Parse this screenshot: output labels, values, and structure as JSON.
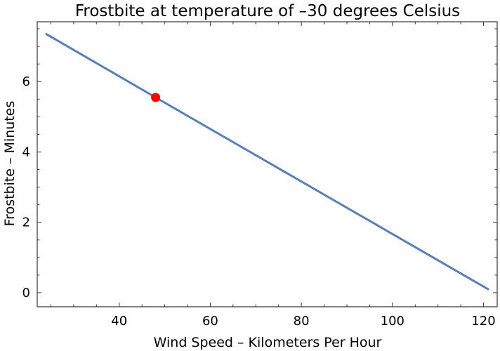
{
  "chart_data": {
    "type": "line",
    "title": "Frostbite at temperature of –30 degrees Celsius",
    "xlabel": "Wind Speed – Kilometers Per Hour",
    "ylabel": "Frostbite – Minutes",
    "xlim": [
      22,
      123
    ],
    "ylim": [
      -0.4,
      7.7
    ],
    "xticks": [
      40,
      60,
      80,
      100,
      120
    ],
    "yticks": [
      0,
      2,
      4,
      6
    ],
    "series": [
      {
        "x": [
          24,
          48,
          121
        ],
        "y": [
          7.35,
          5.55,
          0.1
        ],
        "color": "#5a7fb4"
      }
    ],
    "highlight_point": {
      "x": 48,
      "y": 5.55,
      "color": "#ff0000"
    },
    "grid": false
  }
}
